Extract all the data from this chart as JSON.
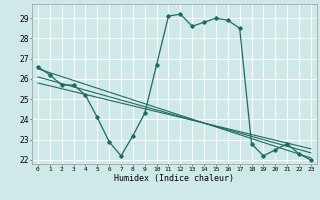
{
  "title": "",
  "xlabel": "Humidex (Indice chaleur)",
  "ylabel": "",
  "xlim": [
    -0.5,
    23.5
  ],
  "ylim": [
    21.8,
    29.7
  ],
  "yticks": [
    22,
    23,
    24,
    25,
    26,
    27,
    28,
    29
  ],
  "xticks": [
    0,
    1,
    2,
    3,
    4,
    5,
    6,
    7,
    8,
    9,
    10,
    11,
    12,
    13,
    14,
    15,
    16,
    17,
    18,
    19,
    20,
    21,
    22,
    23
  ],
  "bg_color": "#cfe8e8",
  "line_color": "#1e6b5e",
  "grid_color": "#ffffff",
  "main_curve_x": [
    0,
    1,
    2,
    3,
    4,
    5,
    6,
    7,
    8,
    9,
    10,
    11,
    12,
    13,
    14,
    15,
    16,
    17,
    18,
    19,
    20,
    21,
    22,
    23
  ],
  "main_curve_y": [
    26.6,
    26.2,
    25.7,
    25.7,
    25.2,
    24.1,
    22.9,
    22.2,
    23.2,
    24.3,
    26.7,
    29.1,
    29.2,
    28.6,
    28.8,
    29.0,
    28.9,
    28.5,
    22.8,
    22.2,
    22.5,
    22.8,
    22.3,
    22.0
  ],
  "line1_x": [
    0,
    23
  ],
  "line1_y": [
    26.5,
    22.1
  ],
  "line2_x": [
    0,
    23
  ],
  "line2_y": [
    26.1,
    22.35
  ],
  "line3_x": [
    0,
    23
  ],
  "line3_y": [
    25.8,
    22.55
  ]
}
